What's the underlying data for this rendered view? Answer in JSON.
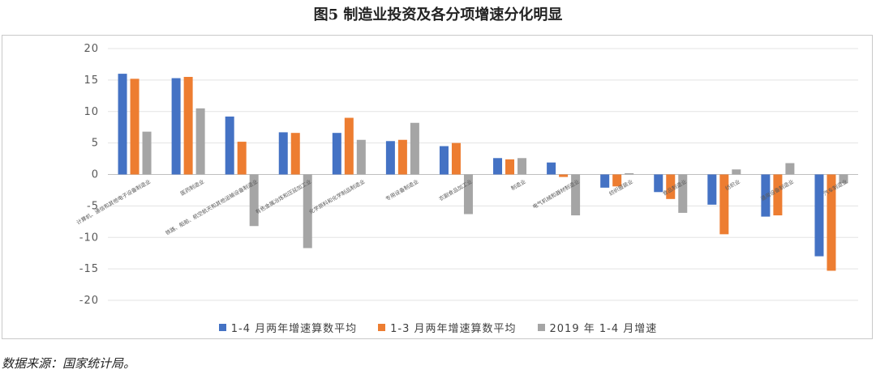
{
  "title": "图5 制造业投资及各分项增速分化明显",
  "source": "数据来源：国家统计局。",
  "colors": {
    "s1": "#4472C4",
    "s2": "#ED7D31",
    "s3": "#A5A5A5"
  },
  "chart_data": {
    "type": "bar",
    "title": "图5 制造业投资及各分项增速分化明显",
    "xlabel": "",
    "ylabel": "",
    "ylim": [
      -20,
      20
    ],
    "yticks": [
      20,
      15,
      10,
      5,
      0,
      -5,
      -10,
      -15,
      -20
    ],
    "grid": true,
    "legend_position": "bottom",
    "categories": [
      "计算机、通信和其他电子设备制造业",
      "医药制造业",
      "铁路、船舶、航空航天和其他运输设备制造业",
      "有色金属冶炼和压延加工业",
      "化学原料和化学制品制造业",
      "专用设备制造业",
      "农副食品加工业",
      "制造业",
      "电气机械和器材制造业",
      "纺织服装业",
      "食品制造业",
      "纺织业",
      "通用设备制造业",
      "汽车制造业"
    ],
    "series": [
      {
        "name": "1-4 月两年增速算数平均",
        "values": [
          16.0,
          15.3,
          9.2,
          6.7,
          6.6,
          5.3,
          4.5,
          2.6,
          1.9,
          -2.1,
          -2.8,
          -4.8,
          -6.7,
          -13.0
        ]
      },
      {
        "name": "1-3 月两年增速算数平均",
        "values": [
          15.2,
          15.5,
          5.2,
          6.6,
          9.0,
          5.5,
          5.0,
          2.4,
          -0.4,
          -1.9,
          -3.9,
          -9.5,
          -6.5,
          -15.3
        ]
      },
      {
        "name": "2019 年 1-4 月增速",
        "values": [
          6.8,
          10.5,
          -8.2,
          -11.7,
          5.5,
          8.2,
          -6.3,
          2.6,
          -6.5,
          0.2,
          -6.1,
          0.8,
          1.8,
          -1.4
        ]
      }
    ]
  }
}
